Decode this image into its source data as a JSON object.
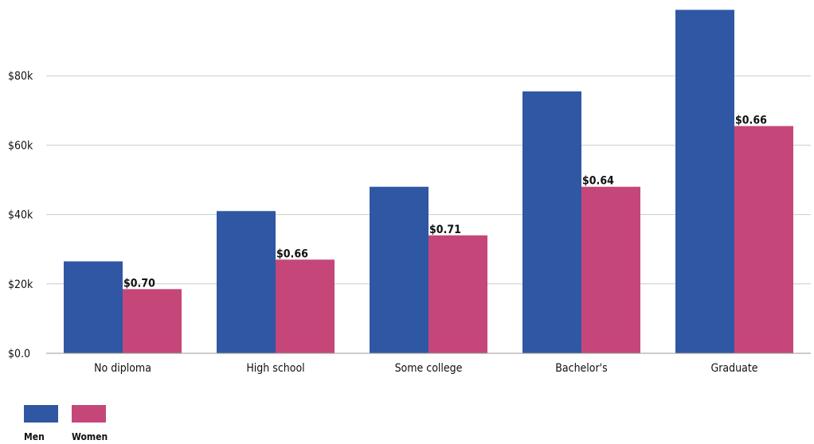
{
  "chart_data": {
    "type": "bar",
    "title": "",
    "xlabel": "",
    "ylabel": "",
    "categories": [
      "No diploma",
      "High school",
      "Some college",
      "Bachelor's",
      "Graduate"
    ],
    "series": [
      {
        "name": "Men",
        "color": "#3057a3",
        "values": [
          26500,
          41000,
          48000,
          75500,
          99000
        ]
      },
      {
        "name": "Women",
        "color": "#c54779",
        "values": [
          18500,
          27000,
          34000,
          48000,
          65500
        ],
        "labels": [
          "$0.70",
          "$0.66",
          "$0.71",
          "$0.64",
          "$0.66"
        ]
      }
    ],
    "ylim": [
      0,
      100000
    ],
    "yticks": [
      {
        "value": 0,
        "label": "$0.0"
      },
      {
        "value": 20000,
        "label": "$20k"
      },
      {
        "value": 40000,
        "label": "$40k"
      },
      {
        "value": 60000,
        "label": "$60k"
      },
      {
        "value": 80000,
        "label": "$80k"
      }
    ],
    "grid": true,
    "legend": "bottom-left"
  }
}
